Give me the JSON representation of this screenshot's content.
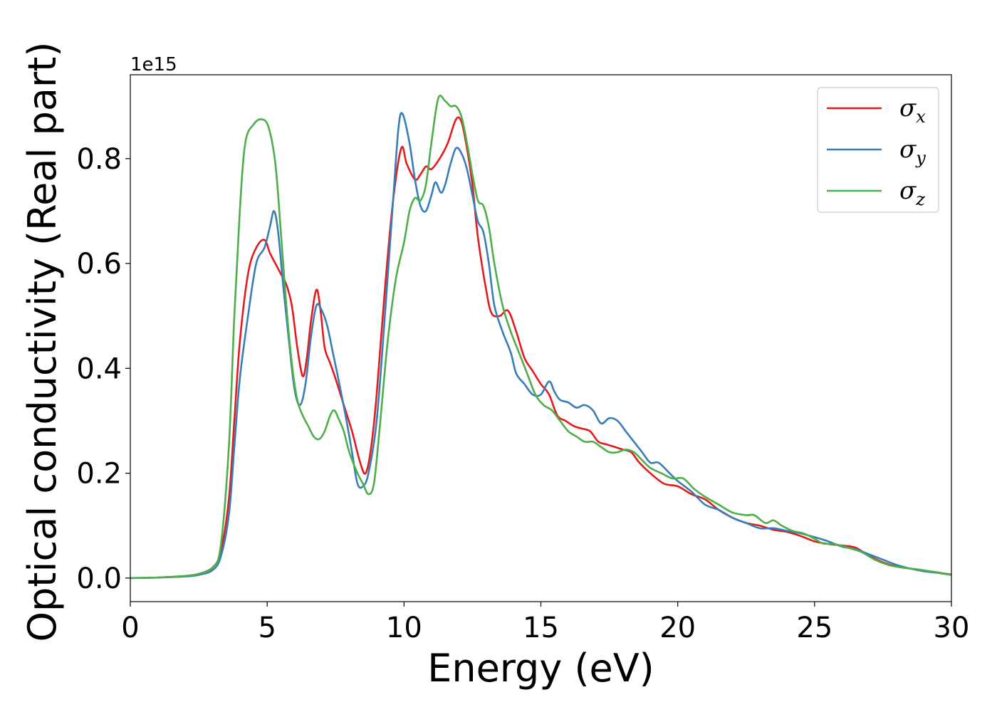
{
  "chart_data": {
    "type": "line",
    "xlabel": "Energy (eV)",
    "ylabel": "Optical conductivity (Real part)",
    "offset_text": "1e15",
    "xlim": [
      0,
      30
    ],
    "ylim": [
      -0.045,
      0.96
    ],
    "x_ticks": [
      0,
      5,
      10,
      15,
      20,
      25,
      30
    ],
    "y_ticks": [
      0.0,
      0.2,
      0.4,
      0.6,
      0.8
    ],
    "x_tick_labels": [
      "0",
      "5",
      "10",
      "15",
      "20",
      "25",
      "30"
    ],
    "y_tick_labels": [
      "0.0",
      "0.2",
      "0.4",
      "0.6",
      "0.8"
    ],
    "grid": false,
    "legend_position": "top-right",
    "series": [
      {
        "name": "σ",
        "subscript": "x",
        "color": "#e41a1c",
        "points": [
          [
            0,
            0
          ],
          [
            1,
            0.001
          ],
          [
            2,
            0.004
          ],
          [
            2.5,
            0.008
          ],
          [
            3,
            0.02
          ],
          [
            3.3,
            0.05
          ],
          [
            3.6,
            0.15
          ],
          [
            3.8,
            0.3
          ],
          [
            4,
            0.45
          ],
          [
            4.3,
            0.58
          ],
          [
            4.6,
            0.63
          ],
          [
            4.9,
            0.645
          ],
          [
            5.1,
            0.62
          ],
          [
            5.3,
            0.6
          ],
          [
            5.5,
            0.58
          ],
          [
            5.7,
            0.56
          ],
          [
            5.9,
            0.52
          ],
          [
            6.1,
            0.44
          ],
          [
            6.3,
            0.385
          ],
          [
            6.45,
            0.42
          ],
          [
            6.6,
            0.49
          ],
          [
            6.8,
            0.55
          ],
          [
            6.95,
            0.51
          ],
          [
            7.1,
            0.44
          ],
          [
            7.3,
            0.41
          ],
          [
            7.5,
            0.38
          ],
          [
            7.8,
            0.33
          ],
          [
            8.1,
            0.28
          ],
          [
            8.4,
            0.22
          ],
          [
            8.6,
            0.2
          ],
          [
            8.8,
            0.25
          ],
          [
            9,
            0.35
          ],
          [
            9.3,
            0.55
          ],
          [
            9.6,
            0.72
          ],
          [
            9.9,
            0.82
          ],
          [
            10.1,
            0.79
          ],
          [
            10.4,
            0.76
          ],
          [
            10.6,
            0.77
          ],
          [
            10.8,
            0.785
          ],
          [
            11,
            0.78
          ],
          [
            11.3,
            0.8
          ],
          [
            11.6,
            0.83
          ],
          [
            11.9,
            0.875
          ],
          [
            12.1,
            0.87
          ],
          [
            12.3,
            0.82
          ],
          [
            12.5,
            0.75
          ],
          [
            12.7,
            0.65
          ],
          [
            13,
            0.55
          ],
          [
            13.2,
            0.505
          ],
          [
            13.5,
            0.5
          ],
          [
            13.8,
            0.51
          ],
          [
            14.1,
            0.47
          ],
          [
            14.4,
            0.42
          ],
          [
            14.7,
            0.395
          ],
          [
            15,
            0.37
          ],
          [
            15.3,
            0.35
          ],
          [
            15.6,
            0.31
          ],
          [
            15.9,
            0.3
          ],
          [
            16.2,
            0.29
          ],
          [
            16.5,
            0.285
          ],
          [
            16.8,
            0.28
          ],
          [
            17.1,
            0.26
          ],
          [
            17.4,
            0.255
          ],
          [
            17.7,
            0.25
          ],
          [
            18,
            0.245
          ],
          [
            18.3,
            0.24
          ],
          [
            18.6,
            0.22
          ],
          [
            19,
            0.2
          ],
          [
            19.5,
            0.18
          ],
          [
            20,
            0.175
          ],
          [
            20.5,
            0.16
          ],
          [
            21,
            0.15
          ],
          [
            21.5,
            0.13
          ],
          [
            22,
            0.115
          ],
          [
            22.5,
            0.105
          ],
          [
            23,
            0.1
          ],
          [
            23.5,
            0.092
          ],
          [
            24,
            0.088
          ],
          [
            24.5,
            0.08
          ],
          [
            25,
            0.07
          ],
          [
            25.5,
            0.065
          ],
          [
            26,
            0.062
          ],
          [
            26.5,
            0.058
          ],
          [
            27,
            0.042
          ],
          [
            27.5,
            0.03
          ],
          [
            28,
            0.022
          ],
          [
            28.5,
            0.018
          ],
          [
            29,
            0.014
          ],
          [
            29.5,
            0.01
          ],
          [
            30,
            0.006
          ]
        ]
      },
      {
        "name": "σ",
        "subscript": "y",
        "color": "#377eb8",
        "points": [
          [
            0,
            0
          ],
          [
            1,
            0.001
          ],
          [
            2,
            0.003
          ],
          [
            2.5,
            0.006
          ],
          [
            3,
            0.015
          ],
          [
            3.3,
            0.04
          ],
          [
            3.6,
            0.12
          ],
          [
            3.8,
            0.25
          ],
          [
            4,
            0.38
          ],
          [
            4.3,
            0.5
          ],
          [
            4.6,
            0.6
          ],
          [
            4.9,
            0.63
          ],
          [
            5.1,
            0.67
          ],
          [
            5.25,
            0.7
          ],
          [
            5.4,
            0.66
          ],
          [
            5.6,
            0.55
          ],
          [
            5.8,
            0.45
          ],
          [
            6,
            0.36
          ],
          [
            6.2,
            0.33
          ],
          [
            6.4,
            0.37
          ],
          [
            6.6,
            0.46
          ],
          [
            6.8,
            0.52
          ],
          [
            7,
            0.51
          ],
          [
            7.2,
            0.48
          ],
          [
            7.4,
            0.43
          ],
          [
            7.6,
            0.38
          ],
          [
            7.9,
            0.3
          ],
          [
            8.1,
            0.24
          ],
          [
            8.3,
            0.18
          ],
          [
            8.5,
            0.175
          ],
          [
            8.7,
            0.2
          ],
          [
            9,
            0.3
          ],
          [
            9.3,
            0.5
          ],
          [
            9.6,
            0.72
          ],
          [
            9.8,
            0.86
          ],
          [
            9.95,
            0.885
          ],
          [
            10.2,
            0.83
          ],
          [
            10.4,
            0.76
          ],
          [
            10.6,
            0.71
          ],
          [
            10.8,
            0.7
          ],
          [
            11,
            0.73
          ],
          [
            11.15,
            0.755
          ],
          [
            11.35,
            0.735
          ],
          [
            11.5,
            0.75
          ],
          [
            11.7,
            0.79
          ],
          [
            11.9,
            0.82
          ],
          [
            12.1,
            0.81
          ],
          [
            12.3,
            0.78
          ],
          [
            12.5,
            0.73
          ],
          [
            12.7,
            0.68
          ],
          [
            12.9,
            0.66
          ],
          [
            13.1,
            0.6
          ],
          [
            13.3,
            0.52
          ],
          [
            13.6,
            0.47
          ],
          [
            13.9,
            0.43
          ],
          [
            14.1,
            0.39
          ],
          [
            14.4,
            0.37
          ],
          [
            14.7,
            0.35
          ],
          [
            15,
            0.35
          ],
          [
            15.3,
            0.375
          ],
          [
            15.5,
            0.355
          ],
          [
            15.7,
            0.34
          ],
          [
            16,
            0.335
          ],
          [
            16.3,
            0.325
          ],
          [
            16.6,
            0.33
          ],
          [
            16.9,
            0.32
          ],
          [
            17.2,
            0.295
          ],
          [
            17.5,
            0.305
          ],
          [
            17.8,
            0.3
          ],
          [
            18.1,
            0.28
          ],
          [
            18.4,
            0.26
          ],
          [
            18.7,
            0.24
          ],
          [
            19,
            0.22
          ],
          [
            19.3,
            0.22
          ],
          [
            19.7,
            0.2
          ],
          [
            20,
            0.185
          ],
          [
            20.5,
            0.165
          ],
          [
            21,
            0.14
          ],
          [
            21.5,
            0.13
          ],
          [
            22,
            0.115
          ],
          [
            22.5,
            0.105
          ],
          [
            23,
            0.095
          ],
          [
            23.5,
            0.095
          ],
          [
            24,
            0.09
          ],
          [
            24.5,
            0.085
          ],
          [
            25,
            0.078
          ],
          [
            25.5,
            0.07
          ],
          [
            26,
            0.06
          ],
          [
            26.5,
            0.055
          ],
          [
            27,
            0.045
          ],
          [
            27.5,
            0.035
          ],
          [
            28,
            0.025
          ],
          [
            28.5,
            0.018
          ],
          [
            29,
            0.013
          ],
          [
            29.5,
            0.01
          ],
          [
            30,
            0.007
          ]
        ]
      },
      {
        "name": "σ",
        "subscript": "z",
        "color": "#4daf4a",
        "points": [
          [
            0,
            0
          ],
          [
            1,
            0.001
          ],
          [
            2,
            0.004
          ],
          [
            2.5,
            0.008
          ],
          [
            3,
            0.02
          ],
          [
            3.3,
            0.06
          ],
          [
            3.6,
            0.25
          ],
          [
            3.8,
            0.5
          ],
          [
            4,
            0.7
          ],
          [
            4.2,
            0.83
          ],
          [
            4.5,
            0.865
          ],
          [
            4.8,
            0.875
          ],
          [
            5.05,
            0.86
          ],
          [
            5.3,
            0.79
          ],
          [
            5.5,
            0.66
          ],
          [
            5.7,
            0.52
          ],
          [
            5.9,
            0.41
          ],
          [
            6.1,
            0.34
          ],
          [
            6.3,
            0.31
          ],
          [
            6.5,
            0.29
          ],
          [
            6.7,
            0.27
          ],
          [
            6.9,
            0.265
          ],
          [
            7.1,
            0.28
          ],
          [
            7.3,
            0.31
          ],
          [
            7.45,
            0.32
          ],
          [
            7.6,
            0.305
          ],
          [
            7.8,
            0.28
          ],
          [
            8,
            0.24
          ],
          [
            8.3,
            0.2
          ],
          [
            8.5,
            0.18
          ],
          [
            8.7,
            0.16
          ],
          [
            8.9,
            0.18
          ],
          [
            9.1,
            0.28
          ],
          [
            9.4,
            0.45
          ],
          [
            9.7,
            0.57
          ],
          [
            10,
            0.64
          ],
          [
            10.2,
            0.7
          ],
          [
            10.4,
            0.725
          ],
          [
            10.6,
            0.72
          ],
          [
            10.8,
            0.75
          ],
          [
            11,
            0.83
          ],
          [
            11.25,
            0.915
          ],
          [
            11.5,
            0.91
          ],
          [
            11.7,
            0.9
          ],
          [
            11.9,
            0.9
          ],
          [
            12.1,
            0.88
          ],
          [
            12.3,
            0.83
          ],
          [
            12.5,
            0.77
          ],
          [
            12.7,
            0.72
          ],
          [
            12.9,
            0.71
          ],
          [
            13.1,
            0.67
          ],
          [
            13.3,
            0.6
          ],
          [
            13.6,
            0.52
          ],
          [
            13.9,
            0.47
          ],
          [
            14.2,
            0.43
          ],
          [
            14.5,
            0.39
          ],
          [
            14.8,
            0.35
          ],
          [
            15.1,
            0.33
          ],
          [
            15.4,
            0.32
          ],
          [
            15.7,
            0.3
          ],
          [
            16,
            0.28
          ],
          [
            16.3,
            0.27
          ],
          [
            16.6,
            0.26
          ],
          [
            16.9,
            0.26
          ],
          [
            17.2,
            0.25
          ],
          [
            17.5,
            0.24
          ],
          [
            17.8,
            0.24
          ],
          [
            18.1,
            0.245
          ],
          [
            18.4,
            0.24
          ],
          [
            18.7,
            0.225
          ],
          [
            19,
            0.21
          ],
          [
            19.4,
            0.2
          ],
          [
            19.8,
            0.19
          ],
          [
            20.2,
            0.19
          ],
          [
            20.6,
            0.17
          ],
          [
            21,
            0.155
          ],
          [
            21.5,
            0.14
          ],
          [
            22,
            0.125
          ],
          [
            22.5,
            0.12
          ],
          [
            22.8,
            0.12
          ],
          [
            23.2,
            0.105
          ],
          [
            23.5,
            0.11
          ],
          [
            23.8,
            0.1
          ],
          [
            24.2,
            0.09
          ],
          [
            24.6,
            0.085
          ],
          [
            25,
            0.075
          ],
          [
            25.3,
            0.066
          ],
          [
            25.7,
            0.065
          ],
          [
            26.2,
            0.058
          ],
          [
            26.7,
            0.05
          ],
          [
            27.2,
            0.035
          ],
          [
            27.7,
            0.025
          ],
          [
            28.2,
            0.02
          ],
          [
            28.7,
            0.017
          ],
          [
            29.2,
            0.013
          ],
          [
            29.6,
            0.01
          ],
          [
            30,
            0.006
          ]
        ]
      }
    ]
  }
}
